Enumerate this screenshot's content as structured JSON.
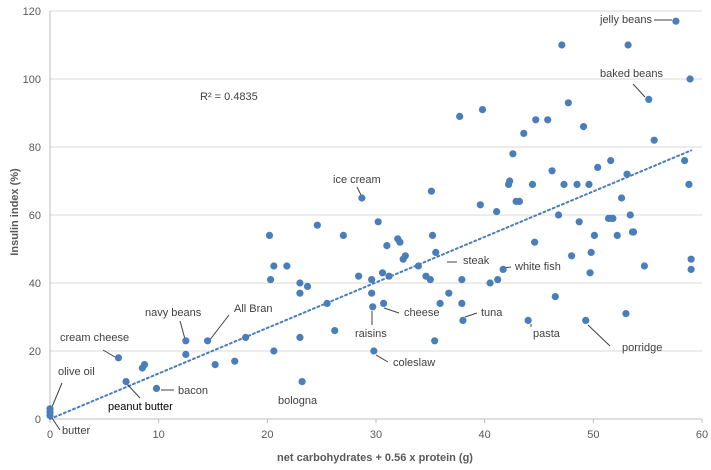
{
  "chart_data": {
    "type": "scatter",
    "xlabel": "net carbohydrates + 0.56 x protein (g)",
    "ylabel": "Insulin index (%)",
    "xlim": [
      0,
      60
    ],
    "ylim": [
      0,
      120
    ],
    "x_ticks": [
      "0",
      "10",
      "20",
      "30",
      "40",
      "50",
      "60"
    ],
    "y_ticks": [
      "0",
      "20",
      "40",
      "60",
      "80",
      "100",
      "120"
    ],
    "grid": "horizontal",
    "r_squared_label": "R² = 0.4835",
    "trendline": {
      "style": "dotted",
      "from": [
        0,
        0
      ],
      "to": [
        59,
        79
      ]
    },
    "marker_color": "#4A7EBB",
    "trend_color": "#4A7EBB",
    "points": [
      [
        0,
        2
      ],
      [
        0,
        3
      ],
      [
        0,
        1
      ],
      [
        6.3,
        18
      ],
      [
        7,
        11
      ],
      [
        8.5,
        15
      ],
      [
        8.7,
        16
      ],
      [
        9.8,
        9
      ],
      [
        12.5,
        23
      ],
      [
        12.5,
        19
      ],
      [
        14.5,
        23
      ],
      [
        15.2,
        16
      ],
      [
        17,
        17
      ],
      [
        18,
        24
      ],
      [
        20.2,
        54
      ],
      [
        20.3,
        41
      ],
      [
        20.6,
        45
      ],
      [
        20.6,
        20
      ],
      [
        21.8,
        45
      ],
      [
        23,
        40
      ],
      [
        23,
        37
      ],
      [
        23,
        24
      ],
      [
        23.2,
        11
      ],
      [
        23.7,
        39
      ],
      [
        24.6,
        57
      ],
      [
        25.5,
        34
      ],
      [
        26.2,
        26
      ],
      [
        27,
        54
      ],
      [
        28.4,
        42
      ],
      [
        28.7,
        65
      ],
      [
        29.6,
        41
      ],
      [
        29.6,
        37
      ],
      [
        29.7,
        33
      ],
      [
        29.8,
        20
      ],
      [
        30.2,
        58
      ],
      [
        30.6,
        43
      ],
      [
        30.7,
        34
      ],
      [
        31,
        51
      ],
      [
        31.2,
        42
      ],
      [
        32,
        53
      ],
      [
        32.2,
        52
      ],
      [
        32.5,
        47
      ],
      [
        32.7,
        48
      ],
      [
        33.9,
        45
      ],
      [
        34.6,
        42
      ],
      [
        35,
        41
      ],
      [
        35.1,
        67
      ],
      [
        35.2,
        54
      ],
      [
        35.4,
        23
      ],
      [
        35.5,
        49
      ],
      [
        35.9,
        34
      ],
      [
        36.7,
        37
      ],
      [
        37.7,
        89
      ],
      [
        37.9,
        41
      ],
      [
        37.9,
        34
      ],
      [
        38,
        29
      ],
      [
        39.6,
        63
      ],
      [
        39.8,
        91
      ],
      [
        40.5,
        40
      ],
      [
        41.1,
        61
      ],
      [
        41.2,
        41
      ],
      [
        41.7,
        44
      ],
      [
        42.2,
        69
      ],
      [
        42.3,
        70
      ],
      [
        42.6,
        78
      ],
      [
        42.9,
        64
      ],
      [
        43.2,
        64
      ],
      [
        43.6,
        84
      ],
      [
        44,
        29
      ],
      [
        44.4,
        69
      ],
      [
        44.6,
        52
      ],
      [
        44.7,
        88
      ],
      [
        45.8,
        88
      ],
      [
        46.2,
        73
      ],
      [
        46.5,
        36
      ],
      [
        46.8,
        60
      ],
      [
        47.1,
        110
      ],
      [
        47.3,
        69
      ],
      [
        47.7,
        93
      ],
      [
        48,
        48
      ],
      [
        48.5,
        69
      ],
      [
        48.7,
        58
      ],
      [
        49.1,
        86
      ],
      [
        49.3,
        29
      ],
      [
        49.6,
        69
      ],
      [
        49.7,
        43
      ],
      [
        49.8,
        49
      ],
      [
        50.1,
        54
      ],
      [
        50.4,
        74
      ],
      [
        51.4,
        59
      ],
      [
        51.6,
        76
      ],
      [
        51.7,
        59
      ],
      [
        51.8,
        59
      ],
      [
        52.2,
        54
      ],
      [
        52.6,
        65
      ],
      [
        53,
        31
      ],
      [
        53.1,
        72
      ],
      [
        53.2,
        110
      ],
      [
        53.4,
        60
      ],
      [
        53.6,
        55
      ],
      [
        53.7,
        55
      ],
      [
        54.7,
        45
      ],
      [
        55.1,
        94
      ],
      [
        55.6,
        82
      ],
      [
        57.6,
        117
      ],
      [
        58.4,
        76
      ],
      [
        58.8,
        69
      ],
      [
        58.9,
        100
      ],
      [
        59,
        47
      ],
      [
        59,
        44
      ]
    ],
    "annotations": [
      {
        "text": "jelly beans",
        "x": 57.6,
        "y": 117
      },
      {
        "text": "baked beans",
        "x": 55.1,
        "y": 94
      },
      {
        "text": "ice cream",
        "x": 28.7,
        "y": 65
      },
      {
        "text": "steak",
        "x": 36.7,
        "y": 47
      },
      {
        "text": "white fish",
        "x": 41.7,
        "y": 44
      },
      {
        "text": "cheese",
        "x": 30.7,
        "y": 34
      },
      {
        "text": "tuna",
        "x": 38,
        "y": 29
      },
      {
        "text": "raisins",
        "x": 29.7,
        "y": 33
      },
      {
        "text": "coleslaw",
        "x": 29.8,
        "y": 20
      },
      {
        "text": "pasta",
        "x": 44,
        "y": 29
      },
      {
        "text": "porridge",
        "x": 49.3,
        "y": 29
      },
      {
        "text": "navy beans",
        "x": 12.5,
        "y": 23
      },
      {
        "text": "All Bran",
        "x": 14.5,
        "y": 23
      },
      {
        "text": "cream cheese",
        "x": 6.3,
        "y": 18
      },
      {
        "text": "olive oil",
        "x": 0,
        "y": 3
      },
      {
        "text": "bacon",
        "x": 9.8,
        "y": 9
      },
      {
        "text": "peanut butter",
        "x": 7,
        "y": 11
      },
      {
        "text": "butter",
        "x": 0,
        "y": 1
      },
      {
        "text": "bologna",
        "x": 23.2,
        "y": 11
      }
    ]
  }
}
